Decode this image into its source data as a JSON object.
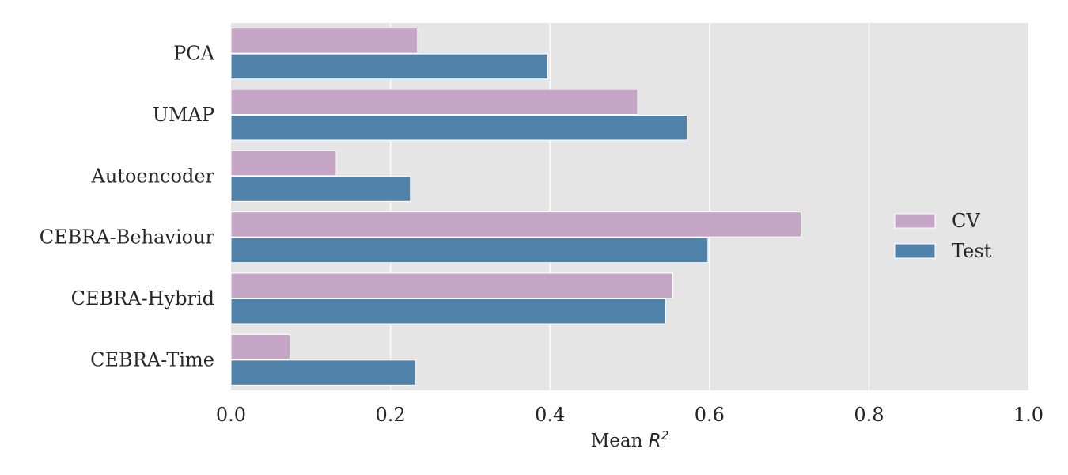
{
  "chart_data": {
    "type": "bar",
    "orientation": "horizontal",
    "categories": [
      "PCA",
      "UMAP",
      "Autoencoder",
      "CEBRA-Behaviour",
      "CEBRA-Hybrid",
      "CEBRA-Time"
    ],
    "series": [
      {
        "name": "CV",
        "values": [
          0.234,
          0.51,
          0.132,
          0.715,
          0.554,
          0.074
        ],
        "color": "#c5a5c5"
      },
      {
        "name": "Test",
        "values": [
          0.397,
          0.572,
          0.225,
          0.598,
          0.545,
          0.231
        ],
        "color": "#5183aa"
      }
    ],
    "xlabel": {
      "prefix": "Mean ",
      "math_base": "R",
      "math_sup": "2"
    },
    "ylabel": "",
    "xlim": [
      0,
      1.0
    ],
    "xticks": [
      "0.0",
      "0.2",
      "0.4",
      "0.6",
      "0.8",
      "1.0"
    ],
    "grid": true,
    "legend_position": "center-right",
    "background": "#e5e5e5",
    "grid_color": "#ffffff"
  }
}
